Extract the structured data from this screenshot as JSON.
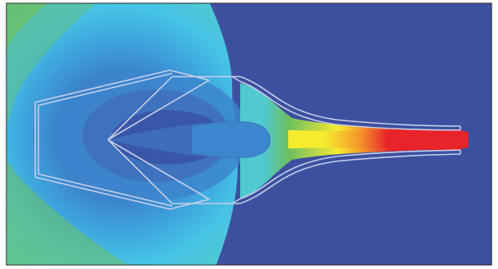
{
  "colors": {
    "background": "#3d50a0",
    "deep_blue": "#3956a8",
    "mid_blue": "#3f70bd",
    "blue": "#3c86cf",
    "light_blue": "#3ea8de",
    "cyan": "#46c3e6",
    "aqua": "#50c9cf",
    "teal_green": "#5bbf98",
    "green": "#6cbf5e",
    "yellow_green": "#b9d64a",
    "yellow": "#f6ec2e",
    "orange": "#f5952a",
    "red": "#e8232a",
    "outline": "#c9d0e6"
  }
}
